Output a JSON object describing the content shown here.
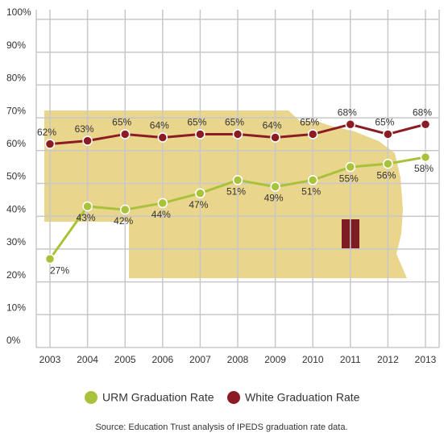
{
  "chart_data": {
    "type": "line",
    "categories": [
      "2003",
      "2004",
      "2005",
      "2006",
      "2007",
      "2008",
      "2009",
      "2010",
      "2011",
      "2012",
      "2013"
    ],
    "series": [
      {
        "name": "URM Graduation Rate",
        "color": "#a9c23c",
        "values": [
          27,
          43,
          42,
          44,
          47,
          51,
          49,
          51,
          55,
          56,
          58
        ],
        "value_labels": [
          "27%",
          "43%",
          "42%",
          "44%",
          "47%",
          "51%",
          "49%",
          "51%",
          "55%",
          "56%",
          "58%"
        ]
      },
      {
        "name": "White Graduation Rate",
        "color": "#8c1c24",
        "values": [
          62,
          63,
          65,
          64,
          65,
          65,
          64,
          65,
          68,
          65,
          68
        ],
        "value_labels": [
          "62%",
          "63%",
          "65%",
          "64%",
          "65%",
          "65%",
          "64%",
          "65%",
          "68%",
          "65%",
          "68%"
        ]
      }
    ],
    "ylim": [
      0,
      100
    ],
    "yticks": [
      {
        "value": 0,
        "label": "0%"
      },
      {
        "value": 10,
        "label": "10%"
      },
      {
        "value": 20,
        "label": "20%"
      },
      {
        "value": 30,
        "label": "30%"
      },
      {
        "value": 40,
        "label": "40%"
      },
      {
        "value": 50,
        "label": "50%"
      },
      {
        "value": 60,
        "label": "60%"
      },
      {
        "value": 70,
        "label": "70%"
      },
      {
        "value": 80,
        "label": "80%"
      },
      {
        "value": 90,
        "label": "90%"
      },
      {
        "value": 100,
        "label": "100%"
      }
    ],
    "grid": true,
    "source": "Source: Education Trust analysis of IPEDS graduation rate data."
  }
}
